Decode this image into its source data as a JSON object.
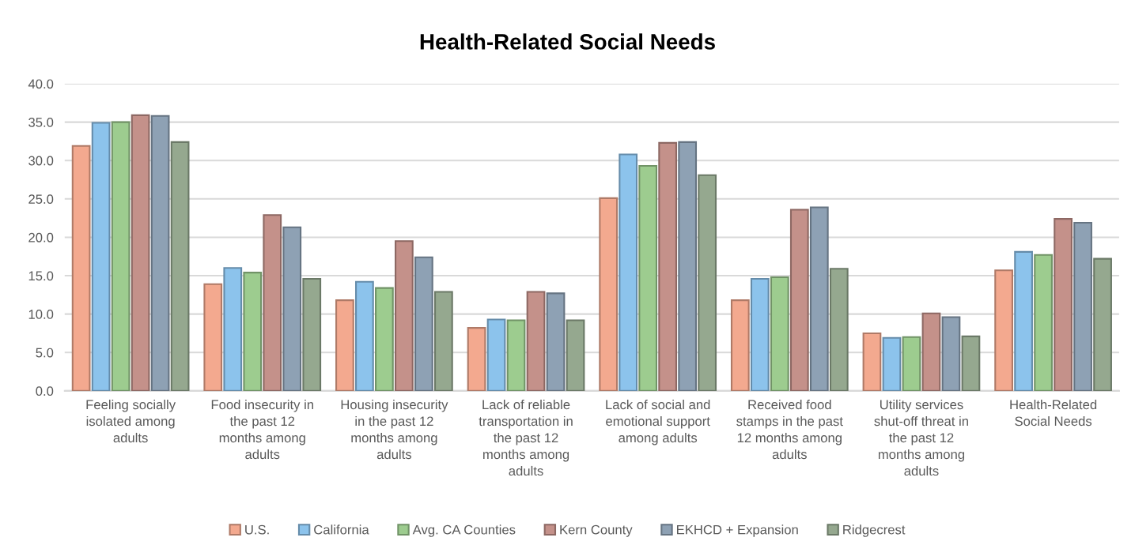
{
  "chart_data": {
    "type": "bar",
    "title": "Health-Related Social Needs",
    "categories": [
      "Feeling socially\nisolated among\nadults",
      "Food insecurity in\nthe past 12\nmonths among\nadults",
      "Housing insecurity\nin the past 12\nmonths among\nadults",
      "Lack of reliable\ntransportation in\nthe past 12\nmonths among\nadults",
      "Lack of social and\nemotional support\namong adults",
      "Received food\nstamps in the past\n12 months among\nadults",
      "Utility services\nshut-off threat in\nthe past 12\nmonths among\nadults",
      "Health-Related\nSocial Needs"
    ],
    "series": [
      {
        "name": "U.S.",
        "color": "#f3a98f",
        "values": [
          31.9,
          13.9,
          11.8,
          8.2,
          25.1,
          11.8,
          7.5,
          15.7
        ]
      },
      {
        "name": "California",
        "color": "#8cc3ec",
        "values": [
          34.9,
          16.0,
          14.2,
          9.3,
          30.8,
          14.6,
          6.9,
          18.1
        ]
      },
      {
        "name": "Avg. CA Counties",
        "color": "#9dcc8f",
        "values": [
          35.0,
          15.4,
          13.4,
          9.2,
          29.3,
          14.8,
          7.0,
          17.7
        ]
      },
      {
        "name": "Kern County",
        "color": "#c4918a",
        "values": [
          35.9,
          22.9,
          19.5,
          12.9,
          32.3,
          23.6,
          10.1,
          22.4
        ]
      },
      {
        "name": "EKHCD + Expansion",
        "color": "#8ea1b4",
        "values": [
          35.8,
          21.3,
          17.4,
          12.7,
          32.4,
          23.9,
          9.6,
          21.9
        ]
      },
      {
        "name": "Ridgecrest",
        "color": "#95a88f",
        "values": [
          32.4,
          14.6,
          12.9,
          9.2,
          28.1,
          15.9,
          7.1,
          17.2
        ]
      }
    ],
    "ylim": [
      0,
      40
    ],
    "yticks": [
      {
        "value": 0,
        "label": "0.0"
      },
      {
        "value": 5,
        "label": "5.0"
      },
      {
        "value": 10,
        "label": "10.0"
      },
      {
        "value": 15,
        "label": "15.0"
      },
      {
        "value": 20,
        "label": "20.0"
      },
      {
        "value": 25,
        "label": "25.0"
      },
      {
        "value": 30,
        "label": "30.0"
      },
      {
        "value": 35,
        "label": "35.0"
      },
      {
        "value": 40,
        "label": "40.0"
      }
    ],
    "grid": "y",
    "legend": "bottom"
  }
}
